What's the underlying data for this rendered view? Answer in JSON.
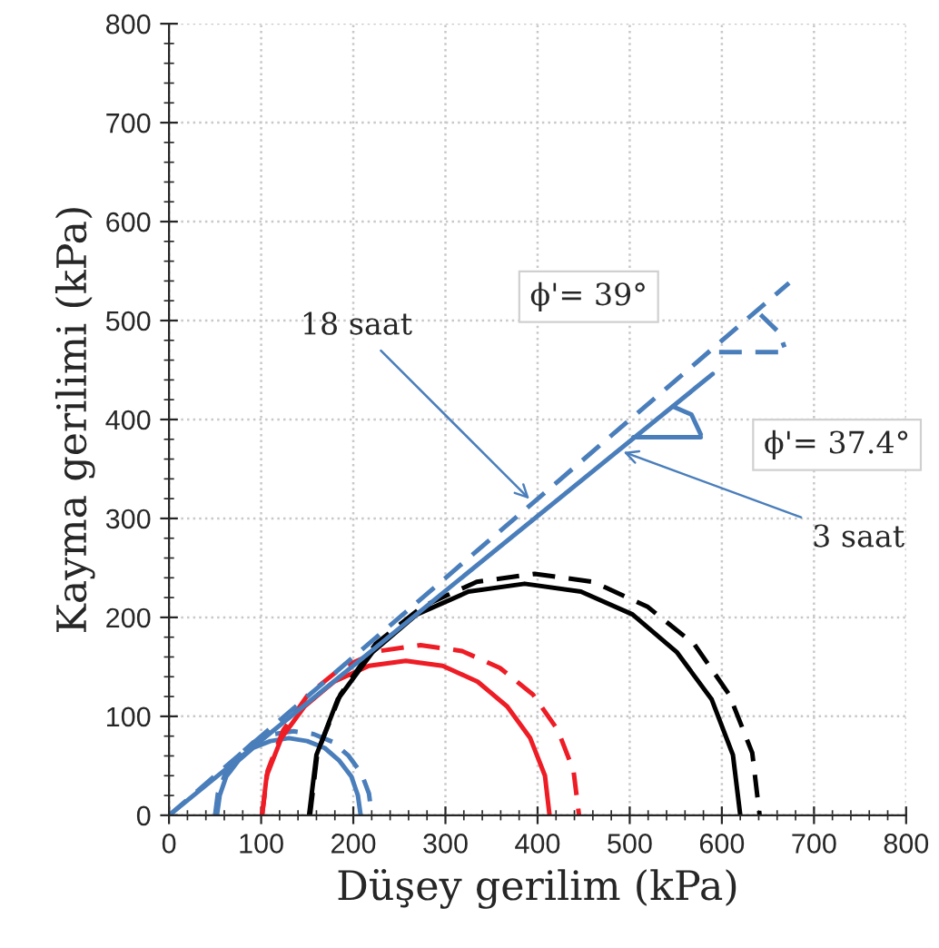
{
  "chart_data": {
    "type": "line",
    "xlabel": "Düşey gerilim (kPa)",
    "ylabel": "Kayma gerilimi (kPa)",
    "xlim": [
      0,
      800
    ],
    "ylim": [
      0,
      800
    ],
    "xticks": [
      0,
      100,
      200,
      300,
      400,
      500,
      600,
      700,
      800
    ],
    "yticks": [
      0,
      100,
      200,
      300,
      400,
      500,
      600,
      700,
      800
    ],
    "grid": true,
    "legend": false,
    "marker": "none",
    "series": [
      {
        "color": "#4a7ebb",
        "line_style": "solid",
        "x": [
          52,
          55,
          62,
          75,
          91,
          110,
          130,
          150,
          169,
          185,
          198,
          205,
          208
        ],
        "values": [
          0,
          20,
          39,
          55,
          68,
          75,
          78,
          75,
          68,
          55,
          39,
          20,
          0
        ]
      },
      {
        "color": "#4a7ebb",
        "line_style": "dashed",
        "x": [
          50,
          53,
          61,
          75,
          92,
          113,
          135,
          157,
          178,
          195,
          209,
          217,
          220
        ],
        "values": [
          0,
          22,
          42,
          60,
          74,
          82,
          85,
          82,
          74,
          60,
          42,
          22,
          0
        ]
      },
      {
        "color": "#ee1c25",
        "line_style": "solid",
        "x": [
          101,
          106,
          122,
          147,
          179,
          217,
          257,
          297,
          335,
          367,
          392,
          408,
          413
        ],
        "values": [
          0,
          40,
          78,
          110,
          135,
          151,
          156,
          151,
          135,
          110,
          78,
          40,
          0
        ]
      },
      {
        "color": "#ee1c25",
        "line_style": "dashed",
        "x": [
          101,
          107,
          124,
          151,
          187,
          228,
          273,
          318,
          359,
          395,
          422,
          439,
          445
        ],
        "values": [
          0,
          45,
          86,
          122,
          149,
          166,
          172,
          166,
          149,
          122,
          86,
          45,
          0
        ]
      },
      {
        "color": "#000000",
        "line_style": "solid",
        "x": [
          152,
          160,
          183,
          221,
          269,
          325,
          386,
          447,
          503,
          551,
          589,
          612,
          620
        ],
        "values": [
          0,
          61,
          117,
          165,
          203,
          226,
          234,
          226,
          203,
          165,
          117,
          61,
          0
        ]
      },
      {
        "color": "#000000",
        "line_style": "dashed",
        "x": [
          153,
          161,
          186,
          224,
          275,
          334,
          397,
          460,
          519,
          570,
          608,
          633,
          641
        ],
        "values": [
          0,
          63,
          122,
          173,
          211,
          236,
          244,
          236,
          211,
          173,
          122,
          63,
          0
        ]
      },
      {
        "color": "#4a7ebb",
        "line_style": "solid",
        "x": [
          0,
          590
        ],
        "values": [
          0,
          446
        ]
      },
      {
        "color": "#4a7ebb",
        "line_style": "dashed",
        "x": [
          0,
          673
        ],
        "values": [
          0,
          538
        ]
      },
      {
        "color": "#4a7ebb",
        "line_style": "solid",
        "x": [
          504,
          577
        ],
        "values": [
          382,
          382
        ]
      },
      {
        "color": "#4a7ebb",
        "line_style": "solid",
        "x": [
          547,
          567,
          577
        ],
        "values": [
          413,
          405,
          385
        ]
      },
      {
        "color": "#4a7ebb",
        "line_style": "dashed",
        "x": [
          597,
          670
        ],
        "values": [
          468,
          468
        ]
      },
      {
        "color": "#4a7ebb",
        "line_style": "dashed",
        "x": [
          642,
          662,
          668
        ],
        "values": [
          506,
          488,
          473
        ]
      }
    ],
    "annotations": [
      {
        "text": "ϕ'= 39°",
        "x": 597,
        "y": 468
      },
      {
        "text": "ϕ'= 37.4°",
        "x": 577,
        "y": 382
      },
      {
        "text": "18 saat",
        "x": 395,
        "y": 316
      },
      {
        "text": "3 saat",
        "x": 488,
        "y": 369
      }
    ]
  }
}
